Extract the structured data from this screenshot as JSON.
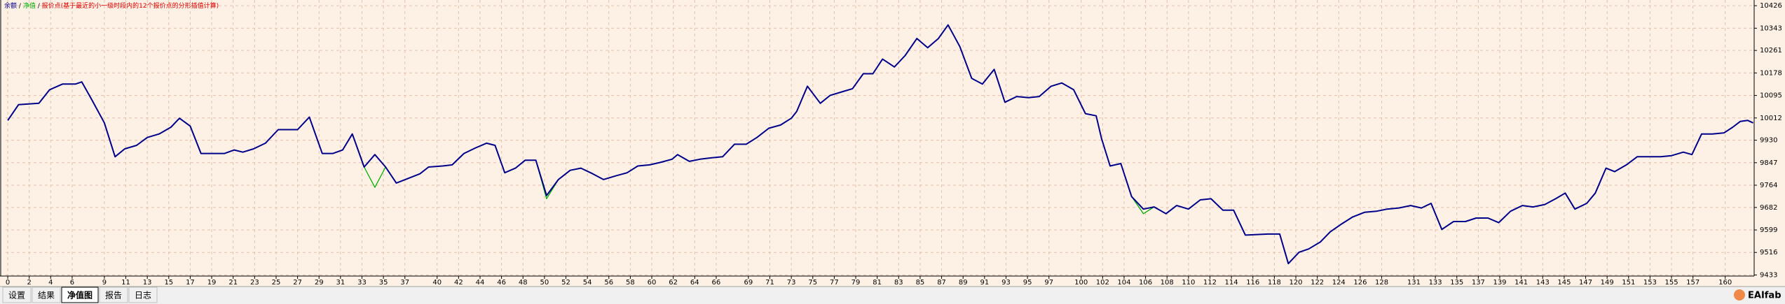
{
  "chart_data": {
    "type": "line",
    "legend_separator": "/",
    "legend_note": "报价点(基于最近的小一级时段内的12个报价点的分形插值计算)",
    "legend_note_color": "#e00000",
    "x": [
      0,
      1.0,
      2.9,
      3.9,
      5.1,
      6.3,
      6.9,
      7.9,
      9.0,
      10.0,
      10.9,
      12.0,
      13.0,
      14.1,
      15.2,
      16.0,
      17.0,
      18.0,
      20.2,
      21.1,
      21.9,
      22.9,
      24.0,
      25.2,
      27.0,
      28.1,
      29.3,
      30.3,
      31.2,
      32.1,
      33.2,
      34.2,
      35.2,
      36.2,
      37.3,
      38.4,
      39.2,
      40.5,
      41.4,
      42.5,
      43.6,
      44.6,
      45.4,
      46.3,
      47.3,
      48.2,
      49.2,
      50.2,
      51.3,
      52.4,
      53.4,
      54.5,
      55.5,
      56.6,
      57.7,
      58.7,
      59.8,
      60.8,
      61.9,
      62.4,
      63.5,
      64.5,
      65.6,
      66.6,
      67.7,
      68.8,
      69.8,
      70.9,
      72.0,
      73.0,
      73.5,
      74.5,
      75.7,
      76.6,
      77.7,
      78.7,
      79.7,
      80.6,
      81.5,
      82.6,
      83.6,
      84.7,
      85.7,
      86.7,
      87.6,
      88.7,
      89.8,
      90.8,
      91.9,
      92.9,
      94.0,
      95.1,
      96.1,
      97.2,
      98.2,
      99.3,
      100.4,
      101.4,
      101.9,
      102.7,
      103.7,
      104.7,
      105.8,
      106.8,
      107.9,
      108.9,
      110.0,
      111.1,
      112.1,
      113.2,
      114.2,
      115.3,
      117.4,
      118.5,
      119.3,
      120.3,
      121.2,
      122.3,
      123.2,
      124.3,
      125.3,
      126.4,
      127.5,
      128.5,
      129.6,
      130.7,
      131.7,
      132.6,
      133.6,
      134.7,
      135.8,
      136.8,
      137.9,
      138.9,
      140.0,
      141.1,
      142.1,
      143.2,
      144.2,
      145.1,
      146.0,
      147.1,
      147.9,
      148.9,
      149.7,
      150.8,
      151.8,
      152.9,
      154.0,
      155.0,
      156.1,
      156.9,
      157.8,
      158.8,
      159.9,
      160.7,
      161.4,
      162.1,
      162.6
    ],
    "series": [
      {
        "name": "余额",
        "color": "#00008b",
        "values": [
          10003,
          10061,
          10066,
          10116,
          10137,
          10137,
          10145,
          10074,
          9994,
          9869,
          9898,
          9911,
          9940,
          9953,
          9978,
          10011,
          9982,
          9881,
          9881,
          9894,
          9886,
          9898,
          9919,
          9969,
          9969,
          10015,
          9881,
          9881,
          9894,
          9953,
          9831,
          9877,
          9831,
          9772,
          9789,
          9806,
          9831,
          9835,
          9839,
          9881,
          9902,
          9919,
          9911,
          9810,
          9827,
          9856,
          9856,
          9726,
          9785,
          9819,
          9827,
          9806,
          9785,
          9798,
          9810,
          9835,
          9839,
          9848,
          9860,
          9877,
          9852,
          9860,
          9865,
          9869,
          9915,
          9915,
          9940,
          9974,
          9986,
          10011,
          10036,
          10129,
          10066,
          10095,
          10108,
          10120,
          10175,
          10175,
          10229,
          10200,
          10242,
          10305,
          10271,
          10305,
          10355,
          10275,
          10158,
          10137,
          10191,
          10070,
          10091,
          10087,
          10091,
          10129,
          10141,
          10116,
          10028,
          10020,
          9936,
          9835,
          9844,
          9722,
          9676,
          9684,
          9659,
          9689,
          9676,
          9710,
          9714,
          9672,
          9672,
          9580,
          9584,
          9584,
          9475,
          9517,
          9529,
          9555,
          9592,
          9622,
          9647,
          9664,
          9668,
          9676,
          9680,
          9689,
          9680,
          9697,
          9601,
          9630,
          9630,
          9643,
          9643,
          9626,
          9668,
          9689,
          9684,
          9693,
          9714,
          9735,
          9676,
          9697,
          9735,
          9827,
          9814,
          9839,
          9869,
          9869,
          9869,
          9873,
          9886,
          9877,
          9953,
          9953,
          9957,
          9978,
          9999,
          10003,
          9994
        ]
      },
      {
        "name": "净值",
        "color": "#00b000",
        "values": [
          10003,
          10061,
          10066,
          10116,
          10137,
          10137,
          10145,
          10074,
          9994,
          9869,
          9898,
          9911,
          9940,
          9953,
          9978,
          10011,
          9982,
          9881,
          9881,
          9894,
          9886,
          9898,
          9919,
          9969,
          9969,
          10015,
          9881,
          9881,
          9894,
          9953,
          9831,
          9756,
          9831,
          9772,
          9789,
          9806,
          9831,
          9835,
          9839,
          9881,
          9902,
          9919,
          9911,
          9810,
          9827,
          9856,
          9856,
          9714,
          9785,
          9819,
          9827,
          9806,
          9785,
          9798,
          9810,
          9835,
          9839,
          9848,
          9860,
          9877,
          9852,
          9860,
          9865,
          9869,
          9915,
          9915,
          9940,
          9974,
          9986,
          10011,
          10036,
          10129,
          10066,
          10095,
          10108,
          10120,
          10175,
          10175,
          10229,
          10200,
          10242,
          10305,
          10271,
          10305,
          10355,
          10275,
          10158,
          10137,
          10191,
          10070,
          10091,
          10087,
          10091,
          10129,
          10141,
          10116,
          10028,
          10020,
          9936,
          9835,
          9844,
          9722,
          9659,
          9684,
          9659,
          9689,
          9676,
          9710,
          9714,
          9672,
          9672,
          9580,
          9584,
          9584,
          9475,
          9517,
          9529,
          9555,
          9592,
          9622,
          9647,
          9664,
          9668,
          9676,
          9680,
          9689,
          9680,
          9697,
          9601,
          9630,
          9630,
          9643,
          9643,
          9626,
          9668,
          9689,
          9684,
          9693,
          9714,
          9735,
          9676,
          9697,
          9735,
          9827,
          9814,
          9839,
          9869,
          9869,
          9869,
          9873,
          9886,
          9877,
          9953,
          9953,
          9957,
          9978,
          9999,
          10003,
          9994
        ]
      }
    ],
    "xlim": [
      -0.2,
      162.7
    ],
    "ylim": [
      9429,
      10447
    ],
    "xticks": [
      0,
      2,
      4,
      6,
      9,
      11,
      13,
      15,
      17,
      19,
      21,
      23,
      25,
      27,
      29,
      31,
      33,
      35,
      37,
      40,
      42,
      44,
      46,
      48,
      50,
      52,
      54,
      56,
      58,
      60,
      62,
      64,
      66,
      69,
      71,
      73,
      75,
      77,
      79,
      81,
      83,
      85,
      87,
      89,
      91,
      93,
      95,
      97,
      100,
      102,
      104,
      106,
      108,
      110,
      112,
      114,
      116,
      118,
      120,
      122,
      124,
      126,
      128,
      131,
      133,
      135,
      137,
      139,
      141,
      143,
      145,
      147,
      149,
      151,
      153,
      155,
      157,
      160
    ],
    "yticks": [
      9433,
      9516,
      9599,
      9682,
      9764,
      9847,
      9930,
      10012,
      10095,
      10178,
      10261,
      10343,
      10426
    ],
    "grid": true
  },
  "tabs": [
    "设置",
    "结果",
    "净值图",
    "报告",
    "日志"
  ],
  "active_tab": 2,
  "watermark": "EAIfab"
}
